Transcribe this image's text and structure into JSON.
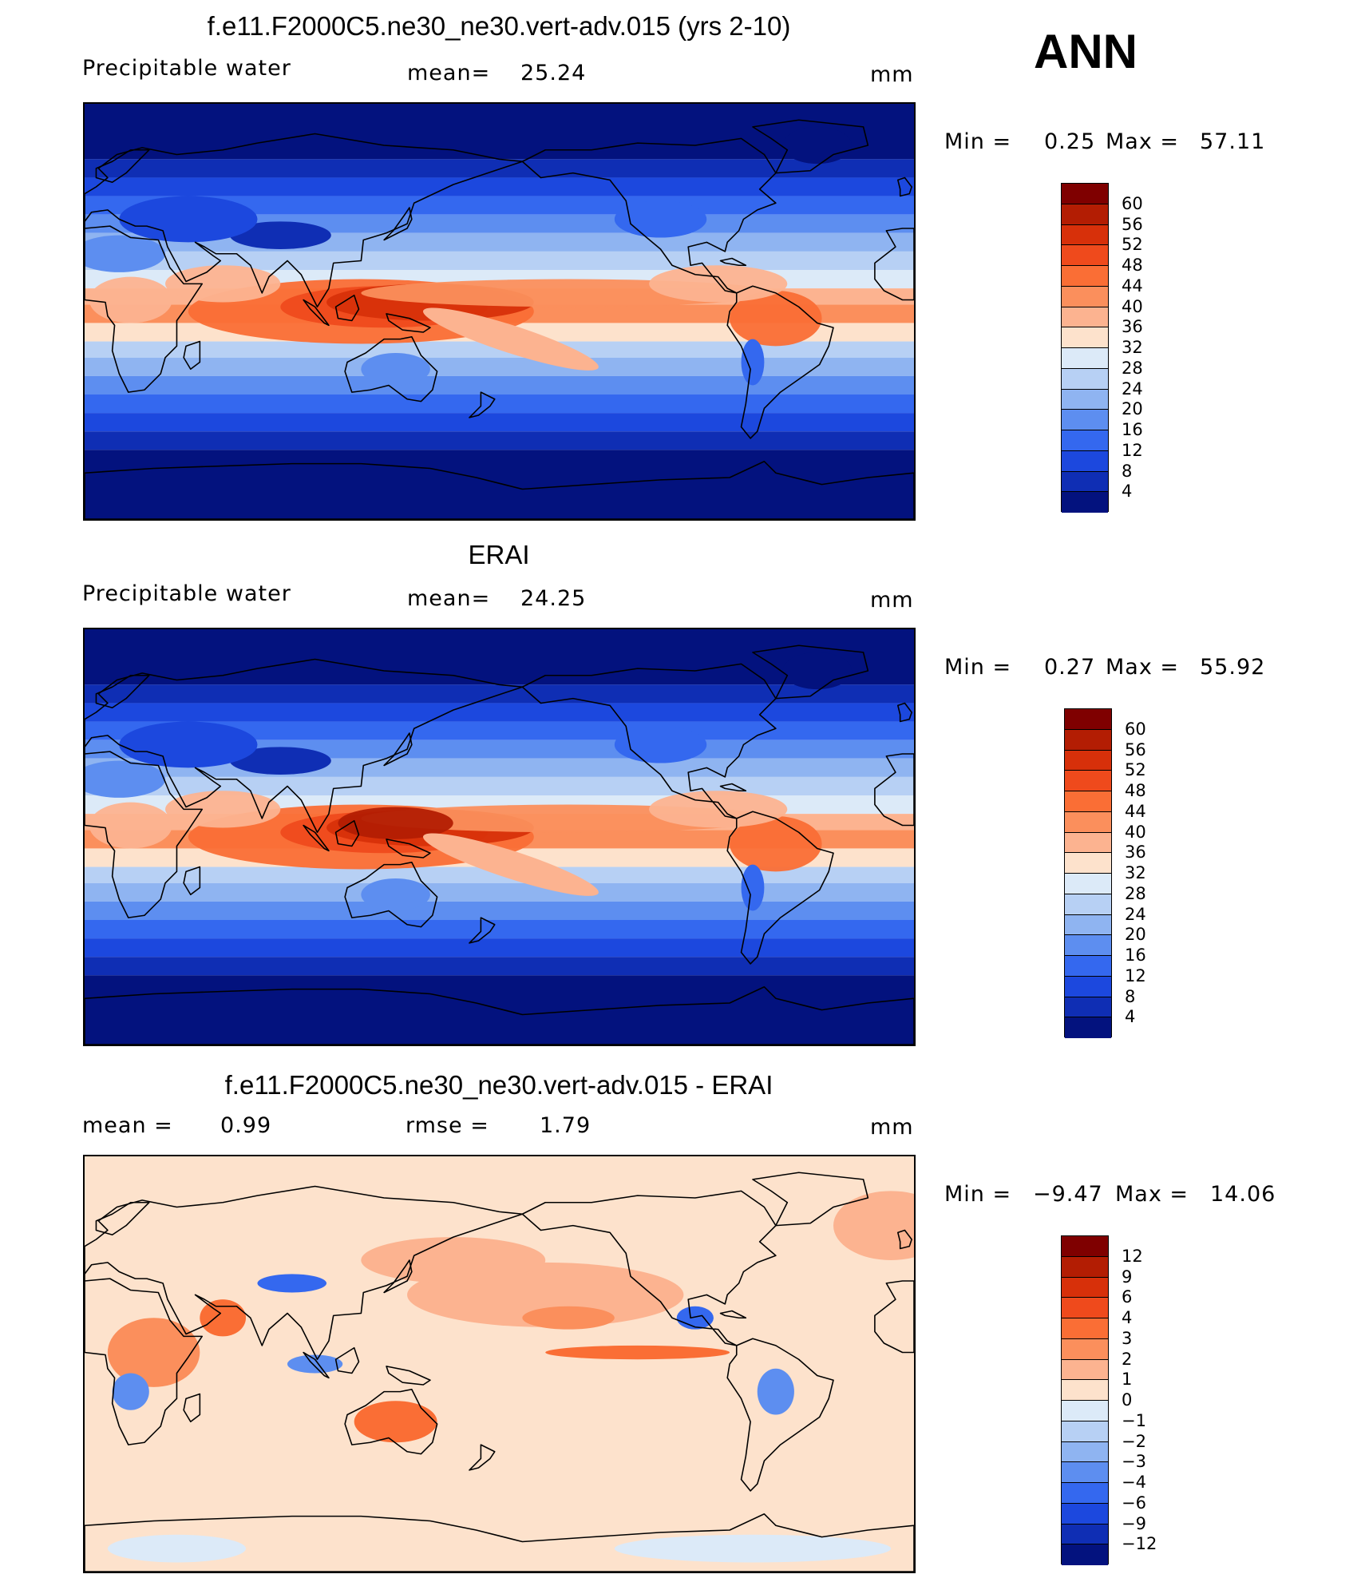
{
  "season": "ANN",
  "units": "mm",
  "panels": [
    {
      "title": "f.e11.F2000C5.ne30_ne30.vert-adv.015 (yrs 2-10)",
      "variable": "Precipitable  water",
      "stat1_label": "mean=",
      "stat1_value": "25.24",
      "stat2_label": "",
      "stat2_value": "",
      "min_label": "Min =",
      "min_value": "0.25",
      "max_label": "Max =",
      "max_value": "57.11",
      "field": "model"
    },
    {
      "title": "ERAI",
      "variable": "Precipitable  water",
      "stat1_label": "mean=",
      "stat1_value": "24.25",
      "stat2_label": "",
      "stat2_value": "",
      "min_label": "Min =",
      "min_value": "0.27",
      "max_label": "Max =",
      "max_value": "55.92",
      "field": "obs"
    },
    {
      "title": "f.e11.F2000C5.ne30_ne30.vert-adv.015 - ERAI",
      "variable": "",
      "stat1_label": "mean =",
      "stat1_value": "0.99",
      "stat2_label": "rmse =",
      "stat2_value": "1.79",
      "min_label": "Min =",
      "min_value": "−9.47",
      "max_label": "Max =",
      "max_value": "14.06",
      "field": "diff"
    }
  ],
  "colorbars": {
    "absolute": {
      "levels": [
        "60",
        "56",
        "52",
        "48",
        "44",
        "40",
        "36",
        "32",
        "28",
        "24",
        "20",
        "16",
        "12",
        "8",
        "4"
      ],
      "colors": [
        "#7f0000",
        "#b31d03",
        "#d7300a",
        "#ef4a1c",
        "#fa6e35",
        "#fb8f5c",
        "#fcb390",
        "#fde2cc",
        "#dceaf8",
        "#b7d0f4",
        "#8fb4f1",
        "#5d8ef0",
        "#3468ef",
        "#1c48de",
        "#0f2eb4",
        "#03127e"
      ]
    },
    "difference": {
      "levels": [
        "12",
        "9",
        "6",
        "4",
        "3",
        "2",
        "1",
        "0",
        "−1",
        "−2",
        "−3",
        "−4",
        "−6",
        "−9",
        "−12"
      ],
      "colors": [
        "#7f0000",
        "#b31d03",
        "#d7300a",
        "#ef4a1c",
        "#fa6e35",
        "#fb8f5c",
        "#fcb390",
        "#fde2cc",
        "#dceaf8",
        "#b7d0f4",
        "#8fb4f1",
        "#5d8ef0",
        "#3468ef",
        "#1c48de",
        "#0f2eb4",
        "#03127e"
      ]
    }
  }
}
